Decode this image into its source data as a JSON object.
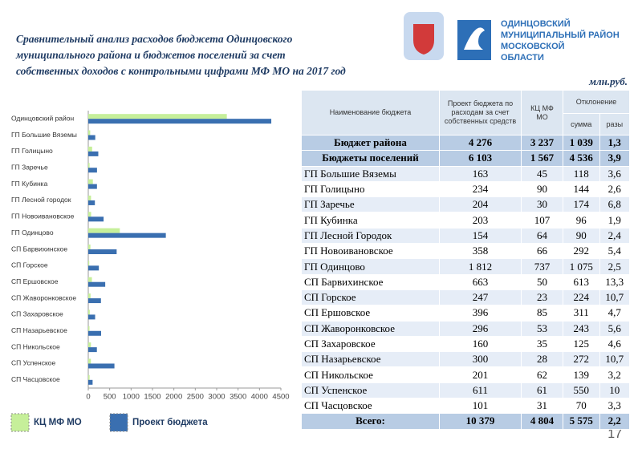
{
  "header": {
    "title_lines": [
      "Сравнительный анализ расходов бюджета Одинцовского",
      "муниципального района и бюджетов поселений за счет",
      "собственных доходов с контрольными цифрами МФ МО на 2017 год"
    ],
    "logo_lines": [
      "ОДИНЦОВСКИЙ",
      "МУНИЦИПАЛЬНЫЙ РАЙОН",
      "МОСКОВСКОЙ",
      "ОБЛАСТИ"
    ],
    "unit": "млн.руб."
  },
  "chart_data": {
    "type": "hbar",
    "categories": [
      "Одинцовский район",
      "ГП Большие Вяземы",
      "ГП Голицыно",
      "ГП Заречье",
      "ГП Кубинка",
      "ГП Лесной городок",
      "ГП Новоивановское",
      "ГП Одинцово",
      "СП Барвихинское",
      "СП Горское",
      "СП Ершовское",
      "СП Жаворонковское",
      "СП Захаровское",
      "СП Назарьевское",
      "СП Никольское",
      "СП Успенское",
      "СП Часцовское"
    ],
    "series": [
      {
        "name": "КЦ МФ МО",
        "color": "#c6ef9a",
        "values": [
          3237,
          45,
          90,
          30,
          107,
          64,
          66,
          737,
          50,
          23,
          85,
          53,
          35,
          28,
          62,
          61,
          31
        ]
      },
      {
        "name": "Проект бюджета",
        "color": "#3a6fb0",
        "values": [
          4276,
          163,
          234,
          204,
          203,
          154,
          358,
          1812,
          663,
          247,
          396,
          296,
          160,
          300,
          201,
          611,
          101
        ]
      }
    ],
    "xlim": [
      0,
      4500
    ],
    "xticks": [
      0,
      500,
      1000,
      1500,
      2000,
      2500,
      3000,
      3500,
      4000,
      4500
    ]
  },
  "table": {
    "header": [
      "Наименование бюджета",
      "Проект бюджета по расходам за счет собственных средств",
      "КЦ МФ МО",
      "Отклонение"
    ],
    "subheader": [
      "сумма",
      "разы"
    ],
    "rows": [
      [
        "Бюджет района",
        "4 276",
        "3 237",
        "1 039",
        "1,3"
      ],
      [
        "Бюджеты поселений",
        "6 103",
        "1 567",
        "4 536",
        "3,9"
      ],
      [
        "ГП Большие Вяземы",
        "163",
        "45",
        "118",
        "3,6"
      ],
      [
        "ГП Голицыно",
        "234",
        "90",
        "144",
        "2,6"
      ],
      [
        "ГП Заречье",
        "204",
        "30",
        "174",
        "6,8"
      ],
      [
        "ГП Кубинка",
        "203",
        "107",
        "96",
        "1,9"
      ],
      [
        "ГП Лесной Городок",
        "154",
        "64",
        "90",
        "2,4"
      ],
      [
        "ГП Новоивановское",
        "358",
        "66",
        "292",
        "5,4"
      ],
      [
        "ГП Одинцово",
        "1 812",
        "737",
        "1 075",
        "2,5"
      ],
      [
        "СП Барвихинское",
        "663",
        "50",
        "613",
        "13,3"
      ],
      [
        "СП Горское",
        "247",
        "23",
        "224",
        "10,7"
      ],
      [
        "СП Ершовское",
        "396",
        "85",
        "311",
        "4,7"
      ],
      [
        "СП Жаворонковское",
        "296",
        "53",
        "243",
        "5,6"
      ],
      [
        "СП Захаровское",
        "160",
        "35",
        "125",
        "4,6"
      ],
      [
        "СП Назарьевское",
        "300",
        "28",
        "272",
        "10,7"
      ],
      [
        "СП Никольское",
        "201",
        "62",
        "139",
        "3,2"
      ],
      [
        "СП Успенское",
        "611",
        "61",
        "550",
        "10"
      ],
      [
        "СП Часцовское",
        "101",
        "31",
        "70",
        "3,3"
      ],
      [
        "Всего:",
        "10 379",
        "4 804",
        "5 575",
        "2,2"
      ]
    ]
  },
  "footer": {
    "page": "17"
  }
}
